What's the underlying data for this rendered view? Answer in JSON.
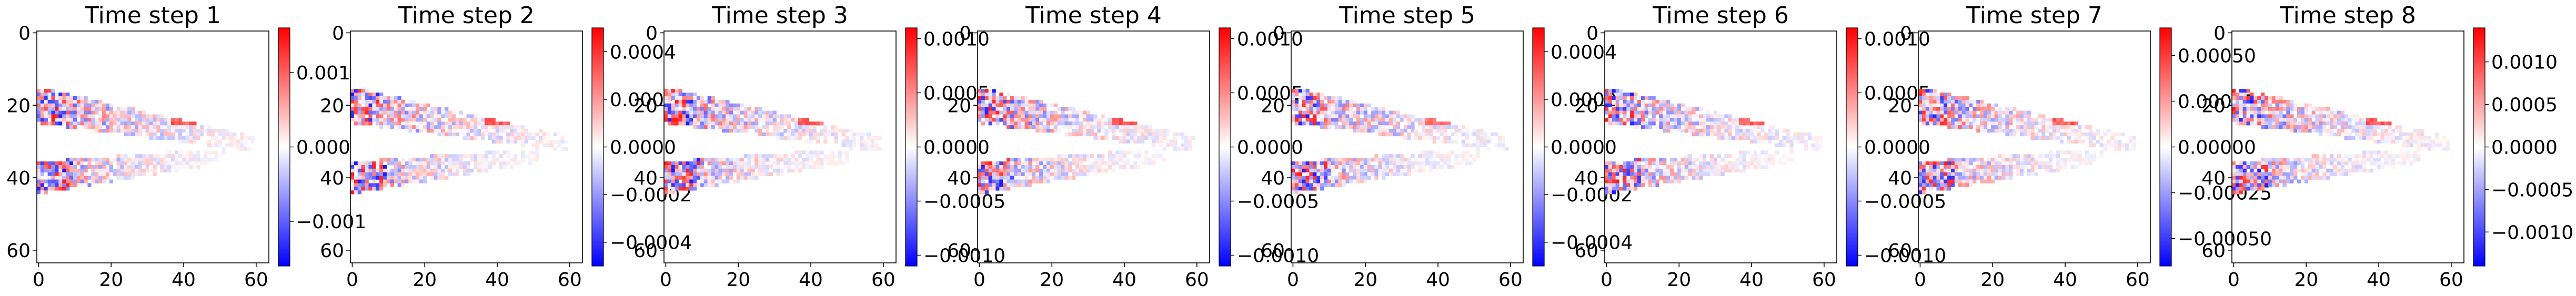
{
  "figure": {
    "colormap": "bwr",
    "colors": {
      "negative": "#0000ff",
      "zero": "#ffffff",
      "positive": "#ff0000",
      "axis": "#000000"
    }
  },
  "chart_data": [
    {
      "type": "heatmap",
      "title": "Time step 1",
      "x_ticks": [
        "0",
        "20",
        "40",
        "60"
      ],
      "y_ticks": [
        "0",
        "20",
        "40",
        "60"
      ],
      "xlim": [
        0,
        63
      ],
      "ylim": [
        63,
        0
      ],
      "grid": false,
      "colorbar": {
        "vmin": -0.0016,
        "vmax": 0.0016,
        "ticks": [
          {
            "value": 0.001,
            "label": "0.001"
          },
          {
            "value": 0.0,
            "label": "0.000"
          },
          {
            "value": -0.001,
            "label": "−0.001"
          }
        ]
      },
      "peak_positive": 0.0016,
      "peak_negative": -0.0016
    },
    {
      "type": "heatmap",
      "title": "Time step 2",
      "x_ticks": [
        "0",
        "20",
        "40",
        "60"
      ],
      "y_ticks": [
        "0",
        "20",
        "40",
        "60"
      ],
      "xlim": [
        0,
        63
      ],
      "ylim": [
        63,
        0
      ],
      "grid": false,
      "colorbar": {
        "vmin": -0.0005,
        "vmax": 0.0005,
        "ticks": [
          {
            "value": 0.0004,
            "label": "0.0004"
          },
          {
            "value": 0.0002,
            "label": "0.0002"
          },
          {
            "value": 0.0,
            "label": "0.0000"
          },
          {
            "value": -0.0002,
            "label": "−0.0002"
          },
          {
            "value": -0.0004,
            "label": "−0.0004"
          }
        ]
      },
      "peak_positive": 0.0005,
      "peak_negative": -0.0005
    },
    {
      "type": "heatmap",
      "title": "Time step 3",
      "x_ticks": [
        "0",
        "20",
        "40",
        "60"
      ],
      "y_ticks": [
        "0",
        "20",
        "40",
        "60"
      ],
      "xlim": [
        0,
        63
      ],
      "ylim": [
        63,
        0
      ],
      "grid": false,
      "colorbar": {
        "vmin": -0.0011,
        "vmax": 0.0011,
        "ticks": [
          {
            "value": 0.001,
            "label": "0.0010"
          },
          {
            "value": 0.0005,
            "label": "0.0005"
          },
          {
            "value": 0.0,
            "label": "0.0000"
          },
          {
            "value": -0.0005,
            "label": "−0.0005"
          },
          {
            "value": -0.001,
            "label": "−0.0010"
          }
        ]
      },
      "peak_positive": 0.0011,
      "peak_negative": -0.0011
    },
    {
      "type": "heatmap",
      "title": "Time step 4",
      "x_ticks": [
        "0",
        "20",
        "40",
        "60"
      ],
      "y_ticks": [
        "0",
        "20",
        "40",
        "60"
      ],
      "xlim": [
        0,
        63
      ],
      "ylim": [
        63,
        0
      ],
      "grid": false,
      "colorbar": {
        "vmin": -0.0011,
        "vmax": 0.0011,
        "ticks": [
          {
            "value": 0.001,
            "label": "0.0010"
          },
          {
            "value": 0.0005,
            "label": "0.0005"
          },
          {
            "value": 0.0,
            "label": "0.0000"
          },
          {
            "value": -0.0005,
            "label": "−0.0005"
          },
          {
            "value": -0.001,
            "label": "−0.0010"
          }
        ]
      },
      "peak_positive": 0.0011,
      "peak_negative": -0.0011
    },
    {
      "type": "heatmap",
      "title": "Time step 5",
      "x_ticks": [
        "0",
        "20",
        "40",
        "60"
      ],
      "y_ticks": [
        "0",
        "20",
        "40",
        "60"
      ],
      "xlim": [
        0,
        63
      ],
      "ylim": [
        63,
        0
      ],
      "grid": false,
      "colorbar": {
        "vmin": -0.0005,
        "vmax": 0.0005,
        "ticks": [
          {
            "value": 0.0004,
            "label": "0.0004"
          },
          {
            "value": 0.0002,
            "label": "0.0002"
          },
          {
            "value": 0.0,
            "label": "0.0000"
          },
          {
            "value": -0.0002,
            "label": "−0.0002"
          },
          {
            "value": -0.0004,
            "label": "−0.0004"
          }
        ]
      },
      "peak_positive": 0.0005,
      "peak_negative": -0.0005
    },
    {
      "type": "heatmap",
      "title": "Time step 6",
      "x_ticks": [
        "0",
        "20",
        "40",
        "60"
      ],
      "y_ticks": [
        "0",
        "20",
        "40",
        "60"
      ],
      "xlim": [
        0,
        63
      ],
      "ylim": [
        63,
        0
      ],
      "grid": false,
      "colorbar": {
        "vmin": -0.0011,
        "vmax": 0.0011,
        "ticks": [
          {
            "value": 0.001,
            "label": "0.0010"
          },
          {
            "value": 0.0005,
            "label": "0.0005"
          },
          {
            "value": 0.0,
            "label": "0.0000"
          },
          {
            "value": -0.0005,
            "label": "−0.0005"
          },
          {
            "value": -0.001,
            "label": "−0.0010"
          }
        ]
      },
      "peak_positive": 0.0011,
      "peak_negative": -0.0011
    },
    {
      "type": "heatmap",
      "title": "Time step 7",
      "x_ticks": [
        "0",
        "20",
        "40",
        "60"
      ],
      "y_ticks": [
        "0",
        "20",
        "40",
        "60"
      ],
      "xlim": [
        0,
        63
      ],
      "ylim": [
        63,
        0
      ],
      "grid": false,
      "colorbar": {
        "vmin": -0.00065,
        "vmax": 0.00065,
        "ticks": [
          {
            "value": 0.0005,
            "label": "0.00050"
          },
          {
            "value": 0.00025,
            "label": "0.00025"
          },
          {
            "value": 0.0,
            "label": "0.00000"
          },
          {
            "value": -0.00025,
            "label": "−0.00025"
          },
          {
            "value": -0.0005,
            "label": "−0.00050"
          }
        ]
      },
      "peak_positive": 0.00065,
      "peak_negative": -0.00065
    },
    {
      "type": "heatmap",
      "title": "Time step 8",
      "x_ticks": [
        "0",
        "20",
        "40",
        "60"
      ],
      "y_ticks": [
        "0",
        "20",
        "40",
        "60"
      ],
      "xlim": [
        0,
        63
      ],
      "ylim": [
        63,
        0
      ],
      "grid": false,
      "colorbar": {
        "vmin": -0.0014,
        "vmax": 0.0014,
        "ticks": [
          {
            "value": 0.001,
            "label": "0.0010"
          },
          {
            "value": 0.0005,
            "label": "0.0005"
          },
          {
            "value": 0.0,
            "label": "0.0000"
          },
          {
            "value": -0.0005,
            "label": "−0.0005"
          },
          {
            "value": -0.001,
            "label": "−0.0010"
          }
        ]
      },
      "peak_positive": 0.0014,
      "peak_negative": -0.0014
    }
  ]
}
